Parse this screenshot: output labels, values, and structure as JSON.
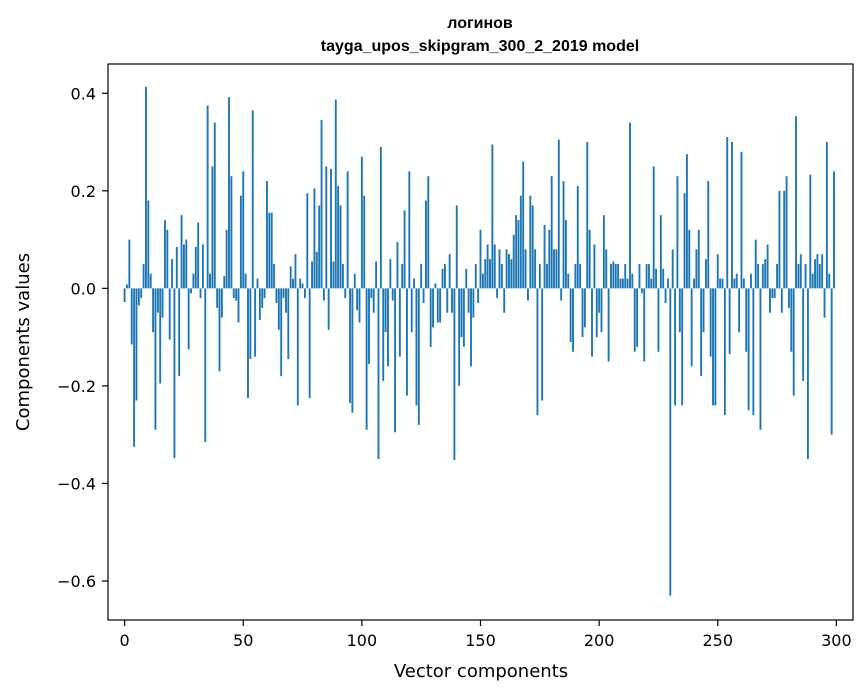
{
  "chart_data": {
    "type": "bar",
    "title": "логинов",
    "subtitle": "tayga_upos_skipgram_300_2_2019 model",
    "xlabel": "Vector components",
    "ylabel": "Components values",
    "xlim": [
      -7,
      307
    ],
    "ylim": [
      -0.68,
      0.46
    ],
    "xticks": [
      0,
      50,
      100,
      150,
      200,
      250,
      300
    ],
    "yticks": [
      0.4,
      0.2,
      0.0,
      -0.2,
      -0.4,
      -0.6
    ],
    "ytick_labels": [
      "0.4",
      "0.2",
      "0.0",
      "−0.2",
      "−0.4",
      "−0.6"
    ],
    "bar_color": "#1f77b4",
    "grid": false,
    "values": [
      -0.028,
      0.008,
      0.1,
      -0.115,
      -0.325,
      -0.23,
      -0.035,
      -0.02,
      0.05,
      0.413,
      0.18,
      0.03,
      -0.09,
      -0.29,
      -0.05,
      -0.195,
      -0.06,
      0.14,
      0.12,
      -0.105,
      0.06,
      -0.348,
      0.085,
      -0.18,
      0.15,
      0.09,
      0.1,
      -0.125,
      -0.01,
      0.03,
      0.085,
      0.135,
      -0.02,
      0.09,
      -0.315,
      0.375,
      0.03,
      0.25,
      0.34,
      -0.04,
      -0.17,
      -0.06,
      0.025,
      0.12,
      0.392,
      0.23,
      -0.02,
      -0.025,
      -0.07,
      0.19,
      0.24,
      0.03,
      -0.225,
      -0.145,
      0.365,
      -0.14,
      0.02,
      -0.065,
      -0.04,
      -0.02,
      0.22,
      0.155,
      0.155,
      0.05,
      -0.03,
      -0.085,
      -0.18,
      -0.02,
      -0.05,
      -0.145,
      0.045,
      0.02,
      0.07,
      -0.24,
      0.02,
      0.01,
      -0.02,
      0.195,
      -0.225,
      0.055,
      0.205,
      0.075,
      0.17,
      0.345,
      -0.025,
      0.25,
      -0.085,
      0.245,
      0.055,
      0.387,
      0.21,
      0.17,
      0.05,
      -0.02,
      0.24,
      -0.235,
      -0.255,
      0.03,
      -0.045,
      -0.07,
      0.27,
      0.19,
      -0.29,
      -0.155,
      -0.02,
      -0.05,
      0.055,
      -0.35,
      0.29,
      -0.19,
      -0.09,
      -0.16,
      0.06,
      -0.025,
      -0.295,
      0.095,
      -0.14,
      0.05,
      0.16,
      -0.22,
      0.24,
      -0.09,
      0.02,
      -0.24,
      -0.28,
      0.05,
      -0.03,
      0.18,
      0.23,
      -0.12,
      -0.08,
      0.01,
      -0.07,
      -0.07,
      0.04,
      0.05,
      -0.05,
      0.07,
      -0.05,
      -0.352,
      0.17,
      -0.2,
      -0.1,
      -0.12,
      0.04,
      -0.05,
      -0.16,
      -0.06,
      0.05,
      -0.03,
      0.12,
      0.03,
      0.06,
      0.09,
      0.06,
      0.295,
      0.09,
      -0.02,
      0.08,
      0.05,
      -0.05,
      0.08,
      0.07,
      0.06,
      0.11,
      0.15,
      0.14,
      0.19,
      0.26,
      0.08,
      -0.025,
      0.19,
      0.17,
      0.08,
      -0.26,
      0.05,
      -0.23,
      0.13,
      0.05,
      0.12,
      0.23,
      0.08,
      0.08,
      0.305,
      -0.025,
      0.22,
      0.14,
      0.03,
      -0.11,
      -0.13,
      0.05,
      0.21,
      0.05,
      -0.1,
      -0.08,
      0.3,
      0.12,
      -0.14,
      0.09,
      -0.1,
      -0.05,
      -0.09,
      0.15,
      0.08,
      -0.15,
      0.05,
      0.055,
      0.05,
      0.05,
      0.02,
      0.02,
      0.05,
      0.02,
      0.34,
      0.03,
      -0.13,
      -0.12,
      0.05,
      -0.01,
      -0.15,
      0.05,
      0.05,
      0.02,
      0.25,
      0.04,
      -0.13,
      0.15,
      0.04,
      -0.03,
      0.02,
      -0.63,
      0.08,
      -0.24,
      0.23,
      -0.09,
      -0.24,
      0.195,
      0.275,
      0.12,
      -0.16,
      0.02,
      0.08,
      0.12,
      -0.18,
      -0.09,
      0.06,
      0.22,
      -0.14,
      -0.24,
      -0.24,
      0.07,
      0.02,
      0.02,
      -0.26,
      0.31,
      -0.135,
      0.3,
      0.02,
      0.03,
      -0.09,
      0.28,
      0.02,
      -0.13,
      -0.25,
      0.03,
      -0.26,
      0.1,
      0.05,
      -0.29,
      0.05,
      0.06,
      0.09,
      -0.05,
      -0.02,
      -0.02,
      0.05,
      0.2,
      -0.05,
      0.2,
      0.23,
      -0.04,
      -0.13,
      -0.22,
      0.353,
      0.05,
      0.07,
      -0.19,
      0.05,
      -0.35,
      0.233,
      0.03,
      0.06,
      0.07,
      0.05,
      0.07,
      -0.06,
      0.3,
      0.03,
      -0.3,
      0.24
    ]
  }
}
